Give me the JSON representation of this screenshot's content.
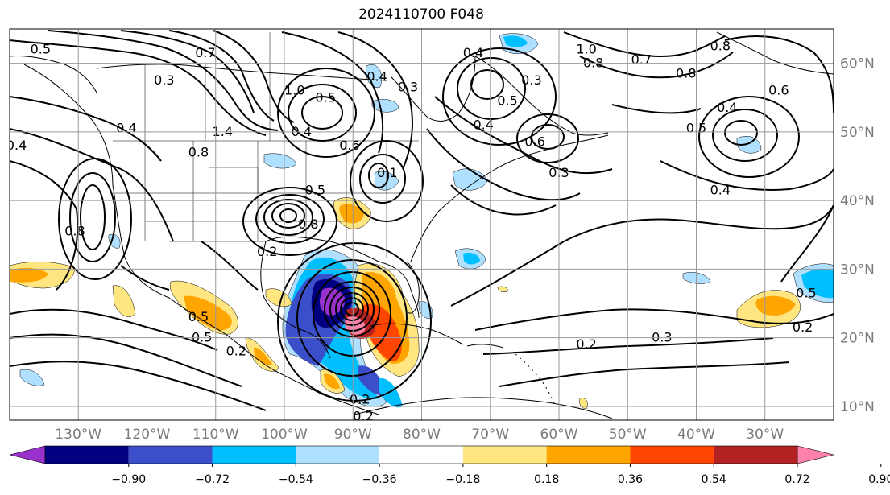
{
  "title": "2024110700 F048",
  "map": {
    "lon_range": [
      -140,
      -20
    ],
    "lat_range": [
      8,
      65
    ],
    "lon_ticks": [
      "130°W",
      "120°W",
      "110°W",
      "100°W",
      "90°W",
      "80°W",
      "70°W",
      "60°W",
      "50°W",
      "40°W",
      "30°W"
    ],
    "lat_ticks": [
      "10°N",
      "20°N",
      "30°N",
      "40°N",
      "50°N",
      "60°N"
    ],
    "contour_labels": [
      {
        "text": "0.5",
        "lon": -135.5,
        "lat": 62
      },
      {
        "text": "0.7",
        "lon": -111.5,
        "lat": 61.5
      },
      {
        "text": "0.3",
        "lon": -117.5,
        "lat": 57.5
      },
      {
        "text": "1.0",
        "lon": -98.5,
        "lat": 56
      },
      {
        "text": "0.5",
        "lon": -94,
        "lat": 55
      },
      {
        "text": "1.4",
        "lon": -109,
        "lat": 50
      },
      {
        "text": "0.8",
        "lon": -112.5,
        "lat": 47
      },
      {
        "text": "0.4",
        "lon": -97.5,
        "lat": 50
      },
      {
        "text": "0.6",
        "lon": -90.5,
        "lat": 48
      },
      {
        "text": "0.4",
        "lon": -123,
        "lat": 50.5
      },
      {
        "text": "0.4",
        "lon": -139,
        "lat": 48
      },
      {
        "text": "0.4",
        "lon": -86.5,
        "lat": 58
      },
      {
        "text": "0.3",
        "lon": -82,
        "lat": 56.5
      },
      {
        "text": "0.5",
        "lon": -67.5,
        "lat": 54.5
      },
      {
        "text": "0.4",
        "lon": -71,
        "lat": 51
      },
      {
        "text": "0.3",
        "lon": -64,
        "lat": 57.5
      },
      {
        "text": "0.6",
        "lon": -63.5,
        "lat": 48.5
      },
      {
        "text": "0.3",
        "lon": -60,
        "lat": 44
      },
      {
        "text": "0.4",
        "lon": -72.5,
        "lat": 61.5
      },
      {
        "text": "1.0",
        "lon": -56,
        "lat": 62
      },
      {
        "text": "0.8",
        "lon": -55,
        "lat": 60
      },
      {
        "text": "0.7",
        "lon": -48,
        "lat": 60.5
      },
      {
        "text": "0.8",
        "lon": -36.5,
        "lat": 62.5
      },
      {
        "text": "0.8",
        "lon": -41.5,
        "lat": 58.5
      },
      {
        "text": "0.6",
        "lon": -28,
        "lat": 56
      },
      {
        "text": "0.4",
        "lon": -35.5,
        "lat": 53.5
      },
      {
        "text": "0.5",
        "lon": -40,
        "lat": 50.5
      },
      {
        "text": "0.4",
        "lon": -36.5,
        "lat": 41.5
      },
      {
        "text": "0.1",
        "lon": -85,
        "lat": 44
      },
      {
        "text": "0.5",
        "lon": -95.5,
        "lat": 41.5
      },
      {
        "text": "0.8",
        "lon": -96.5,
        "lat": 36.5
      },
      {
        "text": "0.8",
        "lon": -130.5,
        "lat": 35.5
      },
      {
        "text": "0.5",
        "lon": -112.5,
        "lat": 23
      },
      {
        "text": "0.5",
        "lon": -112,
        "lat": 20
      },
      {
        "text": "0.2",
        "lon": -107,
        "lat": 18
      },
      {
        "text": "0.2",
        "lon": -102.5,
        "lat": 32.5
      },
      {
        "text": "0.2",
        "lon": -89,
        "lat": 11
      },
      {
        "text": "0.2",
        "lon": -88.5,
        "lat": 8.5
      },
      {
        "text": "0.3",
        "lon": -45,
        "lat": 20
      },
      {
        "text": "0.2",
        "lon": -56,
        "lat": 19
      },
      {
        "text": "0.2",
        "lon": -24.5,
        "lat": 21.5
      },
      {
        "text": "0.5",
        "lon": -24,
        "lat": 26.5
      }
    ]
  },
  "colorbar": {
    "ticks": [
      "−0.90",
      "−0.72",
      "−0.54",
      "−0.36",
      "−0.18",
      "0.18",
      "0.36",
      "0.54",
      "0.72",
      "0.90"
    ],
    "colors": [
      "#9932cc",
      "#000080",
      "#3a4fc9",
      "#00bfff",
      "#b0e0ff",
      "#ffffff",
      "#ffe680",
      "#ffa500",
      "#ff4500",
      "#b22222",
      "#ff82ab"
    ]
  }
}
